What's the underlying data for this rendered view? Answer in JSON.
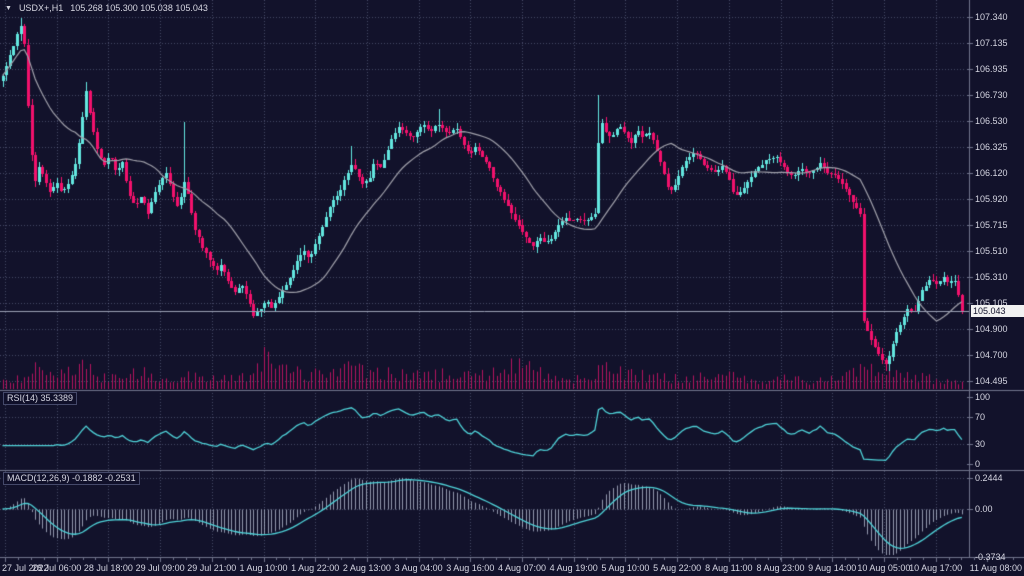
{
  "header": {
    "symbol_period": "USDX+,H1",
    "ohlc_values": "105.268 105.300 105.038 105.043"
  },
  "price_axis": {
    "current_price": "105.043"
  },
  "panels": {
    "rsi": {
      "label": "RSI(14) 35.3389",
      "levels": [
        "100",
        "70",
        "30",
        "0"
      ]
    },
    "macd": {
      "label": "MACD(12,26,9) -0.1882 -0.2531",
      "levels": [
        "0.2444",
        "0.00",
        "-0.3734"
      ]
    }
  },
  "chart_data": {
    "type": "candlestick",
    "title": "USDX+,H1",
    "symbol": "USDX+",
    "timeframe": "H1",
    "ohlc_header": {
      "open": 105.268,
      "high": 105.3,
      "low": 105.038,
      "close": 105.043
    },
    "current_price": 105.043,
    "bars": 265,
    "y_ticks": [
      107.34,
      107.135,
      106.935,
      106.73,
      106.53,
      106.325,
      106.12,
      105.92,
      105.715,
      105.51,
      105.31,
      105.105,
      104.9,
      104.7,
      104.495
    ],
    "ylim": [
      104.495,
      107.34
    ],
    "x_labels": [
      "27 Jul 2022",
      "28 Jul 06:00",
      "28 Jul 18:00",
      "29 Jul 09:00",
      "29 Jul 21:00",
      "1 Aug 10:00",
      "1 Aug 22:00",
      "2 Aug 13:00",
      "3 Aug 04:00",
      "3 Aug 16:00",
      "4 Aug 07:00",
      "4 Aug 19:00",
      "5 Aug 10:00",
      "5 Aug 22:00",
      "8 Aug 11:00",
      "8 Aug 23:00",
      "9 Aug 14:00",
      "10 Aug 05:00",
      "10 Aug 17:00",
      "11 Aug 08:00"
    ],
    "grid": true,
    "close_path": [
      [
        0,
        106.88
      ],
      [
        0.006,
        107.0
      ],
      [
        0.012,
        107.12
      ],
      [
        0.018,
        107.3
      ],
      [
        0.023,
        107.12
      ],
      [
        0.028,
        106.45
      ],
      [
        0.033,
        106.02
      ],
      [
        0.038,
        106.18
      ],
      [
        0.044,
        106.06
      ],
      [
        0.05,
        105.97
      ],
      [
        0.056,
        106.06
      ],
      [
        0.062,
        105.96
      ],
      [
        0.068,
        106.04
      ],
      [
        0.075,
        106.15
      ],
      [
        0.082,
        106.48
      ],
      [
        0.087,
        106.78
      ],
      [
        0.092,
        106.55
      ],
      [
        0.098,
        106.33
      ],
      [
        0.105,
        106.17
      ],
      [
        0.112,
        106.28
      ],
      [
        0.118,
        106.12
      ],
      [
        0.125,
        106.2
      ],
      [
        0.132,
        105.95
      ],
      [
        0.138,
        105.88
      ],
      [
        0.145,
        105.94
      ],
      [
        0.152,
        105.8
      ],
      [
        0.158,
        105.96
      ],
      [
        0.165,
        106.06
      ],
      [
        0.171,
        106.12
      ],
      [
        0.177,
        105.96
      ],
      [
        0.183,
        105.85
      ],
      [
        0.19,
        106.08
      ],
      [
        0.194,
        105.92
      ],
      [
        0.2,
        105.68
      ],
      [
        0.208,
        105.55
      ],
      [
        0.215,
        105.45
      ],
      [
        0.222,
        105.35
      ],
      [
        0.228,
        105.42
      ],
      [
        0.235,
        105.28
      ],
      [
        0.242,
        105.18
      ],
      [
        0.25,
        105.25
      ],
      [
        0.258,
        105.08
      ],
      [
        0.262,
        105.0
      ],
      [
        0.268,
        105.06
      ],
      [
        0.275,
        105.12
      ],
      [
        0.282,
        105.06
      ],
      [
        0.29,
        105.18
      ],
      [
        0.298,
        105.28
      ],
      [
        0.306,
        105.42
      ],
      [
        0.313,
        105.52
      ],
      [
        0.32,
        105.45
      ],
      [
        0.327,
        105.58
      ],
      [
        0.335,
        105.72
      ],
      [
        0.342,
        105.88
      ],
      [
        0.35,
        105.96
      ],
      [
        0.357,
        106.08
      ],
      [
        0.363,
        106.18
      ],
      [
        0.37,
        106.12
      ],
      [
        0.376,
        106.02
      ],
      [
        0.382,
        106.08
      ],
      [
        0.388,
        106.22
      ],
      [
        0.395,
        106.15
      ],
      [
        0.4,
        106.28
      ],
      [
        0.407,
        106.42
      ],
      [
        0.413,
        106.48
      ],
      [
        0.42,
        106.44
      ],
      [
        0.427,
        106.38
      ],
      [
        0.433,
        106.46
      ],
      [
        0.44,
        106.5
      ],
      [
        0.447,
        106.44
      ],
      [
        0.453,
        106.52
      ],
      [
        0.46,
        106.45
      ],
      [
        0.467,
        106.42
      ],
      [
        0.473,
        106.48
      ],
      [
        0.48,
        106.35
      ],
      [
        0.487,
        106.28
      ],
      [
        0.493,
        106.32
      ],
      [
        0.5,
        106.25
      ],
      [
        0.507,
        106.18
      ],
      [
        0.513,
        106.05
      ],
      [
        0.52,
        105.95
      ],
      [
        0.527,
        105.85
      ],
      [
        0.533,
        105.78
      ],
      [
        0.54,
        105.68
      ],
      [
        0.547,
        105.6
      ],
      [
        0.553,
        105.55
      ],
      [
        0.56,
        105.62
      ],
      [
        0.567,
        105.57
      ],
      [
        0.573,
        105.62
      ],
      [
        0.58,
        105.72
      ],
      [
        0.587,
        105.77
      ],
      [
        0.593,
        105.75
      ],
      [
        0.6,
        105.77
      ],
      [
        0.607,
        105.74
      ],
      [
        0.613,
        105.78
      ],
      [
        0.618,
        105.8
      ],
      [
        0.6225,
        106.58
      ],
      [
        0.628,
        106.45
      ],
      [
        0.635,
        106.4
      ],
      [
        0.642,
        106.5
      ],
      [
        0.648,
        106.44
      ],
      [
        0.655,
        106.34
      ],
      [
        0.662,
        106.46
      ],
      [
        0.668,
        106.4
      ],
      [
        0.675,
        106.44
      ],
      [
        0.682,
        106.28
      ],
      [
        0.688,
        106.16
      ],
      [
        0.695,
        105.96
      ],
      [
        0.702,
        106.05
      ],
      [
        0.708,
        106.16
      ],
      [
        0.715,
        106.24
      ],
      [
        0.722,
        106.28
      ],
      [
        0.73,
        106.2
      ],
      [
        0.737,
        106.16
      ],
      [
        0.744,
        106.12
      ],
      [
        0.75,
        106.17
      ],
      [
        0.757,
        106.08
      ],
      [
        0.763,
        105.93
      ],
      [
        0.77,
        105.97
      ],
      [
        0.777,
        106.06
      ],
      [
        0.783,
        106.12
      ],
      [
        0.79,
        106.18
      ],
      [
        0.797,
        106.22
      ],
      [
        0.805,
        106.25
      ],
      [
        0.812,
        106.2
      ],
      [
        0.818,
        106.13
      ],
      [
        0.825,
        106.1
      ],
      [
        0.832,
        106.15
      ],
      [
        0.84,
        106.11
      ],
      [
        0.847,
        106.15
      ],
      [
        0.853,
        106.21
      ],
      [
        0.86,
        106.13
      ],
      [
        0.867,
        106.11
      ],
      [
        0.873,
        106.06
      ],
      [
        0.88,
        105.97
      ],
      [
        0.886,
        105.9
      ],
      [
        0.89,
        105.84
      ],
      [
        0.8935,
        105.92
      ],
      [
        0.897,
        104.98
      ],
      [
        0.902,
        104.88
      ],
      [
        0.907,
        104.79
      ],
      [
        0.912,
        104.72
      ],
      [
        0.917,
        104.66
      ],
      [
        0.922,
        104.62
      ],
      [
        0.927,
        104.77
      ],
      [
        0.932,
        104.88
      ],
      [
        0.938,
        104.97
      ],
      [
        0.944,
        105.07
      ],
      [
        0.95,
        105.03
      ],
      [
        0.956,
        105.16
      ],
      [
        0.962,
        105.25
      ],
      [
        0.968,
        105.29
      ],
      [
        0.974,
        105.25
      ],
      [
        0.98,
        105.31
      ],
      [
        0.986,
        105.27
      ],
      [
        0.992,
        105.3
      ],
      [
        1,
        105.043
      ]
    ],
    "wick_overrides": [
      [
        0.018,
        "high",
        107.335
      ],
      [
        0.087,
        "high",
        106.83
      ],
      [
        0.19,
        "high",
        106.52
      ],
      [
        0.363,
        "high",
        106.33
      ],
      [
        0.455,
        "high",
        106.62
      ],
      [
        0.6225,
        "high",
        106.73
      ],
      [
        0.922,
        "low",
        104.575
      ]
    ],
    "volume_envelope": [
      [
        0,
        8
      ],
      [
        0.02,
        14
      ],
      [
        0.03,
        22
      ],
      [
        0.05,
        12
      ],
      [
        0.07,
        18
      ],
      [
        0.085,
        24
      ],
      [
        0.1,
        12
      ],
      [
        0.12,
        14
      ],
      [
        0.14,
        18
      ],
      [
        0.16,
        12
      ],
      [
        0.18,
        11
      ],
      [
        0.2,
        14
      ],
      [
        0.22,
        13
      ],
      [
        0.24,
        11
      ],
      [
        0.26,
        16
      ],
      [
        0.272,
        32
      ],
      [
        0.285,
        22
      ],
      [
        0.3,
        17
      ],
      [
        0.32,
        15
      ],
      [
        0.34,
        20
      ],
      [
        0.352,
        30
      ],
      [
        0.365,
        24
      ],
      [
        0.38,
        17
      ],
      [
        0.4,
        19
      ],
      [
        0.42,
        15
      ],
      [
        0.44,
        13
      ],
      [
        0.46,
        15
      ],
      [
        0.48,
        13
      ],
      [
        0.5,
        17
      ],
      [
        0.52,
        21
      ],
      [
        0.54,
        27
      ],
      [
        0.555,
        19
      ],
      [
        0.57,
        13
      ],
      [
        0.59,
        11
      ],
      [
        0.61,
        13
      ],
      [
        0.625,
        23
      ],
      [
        0.64,
        17
      ],
      [
        0.66,
        15
      ],
      [
        0.68,
        13
      ],
      [
        0.7,
        11
      ],
      [
        0.72,
        13
      ],
      [
        0.74,
        11
      ],
      [
        0.76,
        13
      ],
      [
        0.78,
        11
      ],
      [
        0.8,
        9
      ],
      [
        0.82,
        11
      ],
      [
        0.84,
        9
      ],
      [
        0.86,
        11
      ],
      [
        0.88,
        13
      ],
      [
        0.897,
        28
      ],
      [
        0.91,
        24
      ],
      [
        0.925,
        20
      ],
      [
        0.94,
        17
      ],
      [
        0.96,
        13
      ],
      [
        0.98,
        9
      ],
      [
        1,
        7
      ]
    ],
    "overlays": [
      {
        "name": "SMA",
        "period": 21
      }
    ],
    "indicators": {
      "rsi": {
        "period": 14,
        "last": 35.3389,
        "levels": [
          100,
          70,
          30,
          0
        ]
      },
      "macd": {
        "fast": 12,
        "slow": 26,
        "signal": 9,
        "last_main": -0.1882,
        "last_signal": -0.2531,
        "levels": [
          0.2444,
          0.0,
          -0.3734
        ]
      }
    }
  },
  "colors": {
    "background": "#12122b",
    "grid": "rgba(150,160,195,0.40)",
    "bull": "#63e6df",
    "bear": "#f2116c",
    "volume": "#b3145e",
    "ma": "#a0a0aa",
    "indicator_line": "#4fd2d8",
    "macd_histogram": "rgba(190,198,218,0.75)",
    "separator": "#70748c",
    "price_line": "#9aa0b4",
    "axis_text": "#d6d6e2",
    "tag_bg": "#f2f2f2",
    "tag_text": "#12122b"
  }
}
